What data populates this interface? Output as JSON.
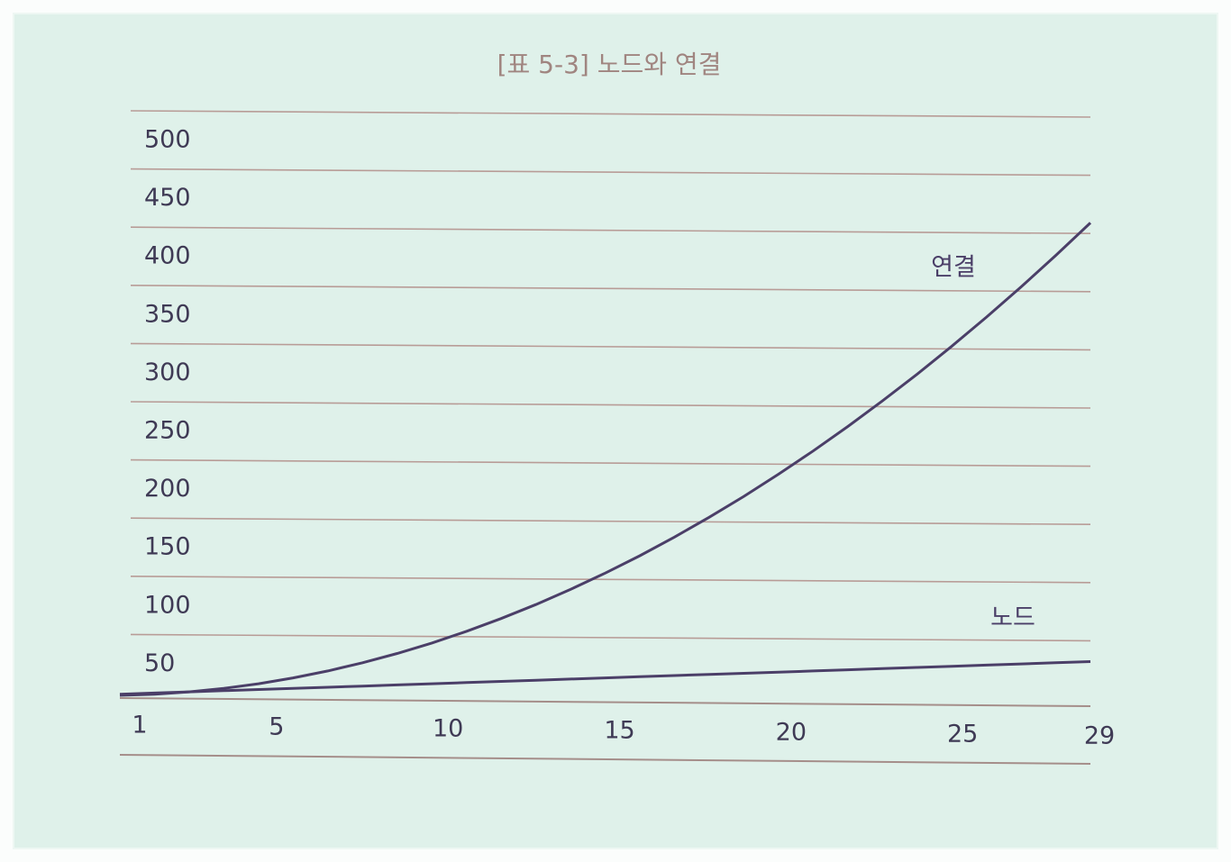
{
  "chart_data": {
    "type": "line",
    "title": "[표 5-3] 노드와 연결",
    "x": [
      1,
      2,
      3,
      4,
      5,
      6,
      7,
      8,
      9,
      10,
      11,
      12,
      13,
      14,
      15,
      16,
      17,
      18,
      19,
      20,
      21,
      22,
      23,
      24,
      25,
      26,
      27,
      28,
      29
    ],
    "series": [
      {
        "name": "연결",
        "color": "#4b3f68",
        "values": [
          0,
          1,
          3,
          6,
          10,
          15,
          21,
          28,
          36,
          45,
          55,
          66,
          78,
          91,
          105,
          120,
          136,
          153,
          171,
          190,
          210,
          231,
          253,
          276,
          300,
          325,
          351,
          378,
          406
        ]
      },
      {
        "name": "노드",
        "color": "#4b3f68",
        "values": [
          1,
          2,
          3,
          4,
          5,
          6,
          7,
          8,
          9,
          10,
          11,
          12,
          13,
          14,
          15,
          16,
          17,
          18,
          19,
          20,
          21,
          22,
          23,
          24,
          25,
          26,
          27,
          28,
          29
        ]
      }
    ],
    "xlim": [
      1,
      29
    ],
    "xticks": [
      1,
      5,
      10,
      15,
      20,
      25,
      29
    ],
    "ylim": [
      0,
      500
    ],
    "yticks": [
      50,
      100,
      150,
      200,
      250,
      300,
      350,
      400,
      450,
      500
    ],
    "grid": true
  }
}
